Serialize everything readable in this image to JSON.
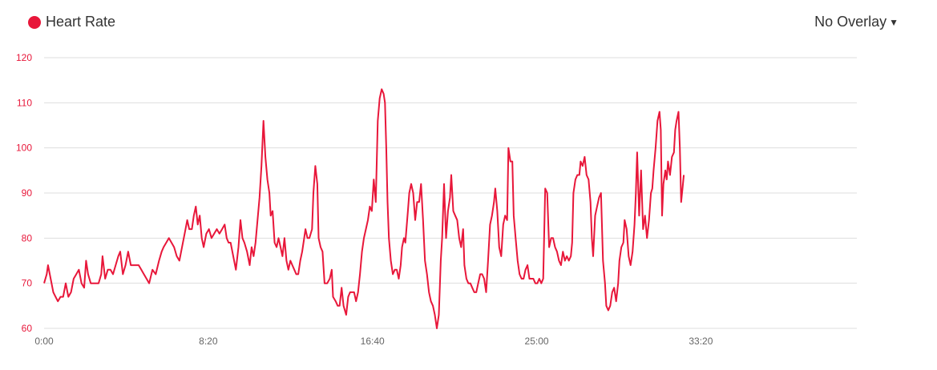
{
  "legend": {
    "label": "Heart Rate",
    "color": "#e8173a",
    "icon": "circle-icon"
  },
  "overlay": {
    "label": "No Overlay",
    "icon": "caret-down-icon"
  },
  "chart_data": {
    "type": "line",
    "title": "",
    "xlabel": "",
    "ylabel": "",
    "ylim": [
      60,
      120
    ],
    "yticks": [
      60,
      70,
      80,
      90,
      100,
      110,
      120
    ],
    "xlim_seconds": [
      0,
      2475
    ],
    "xticks": [
      {
        "label": "0:00",
        "value": 0
      },
      {
        "label": "8:20",
        "value": 500
      },
      {
        "label": "16:40",
        "value": 1000
      },
      {
        "label": "25:00",
        "value": 1500
      },
      {
        "label": "33:20",
        "value": 2000
      }
    ],
    "grid": true,
    "series": [
      {
        "name": "Heart Rate",
        "color": "#e8173a",
        "points": [
          [
            0,
            70
          ],
          [
            8,
            72
          ],
          [
            12,
            74
          ],
          [
            20,
            71
          ],
          [
            28,
            68
          ],
          [
            35,
            67
          ],
          [
            42,
            66
          ],
          [
            50,
            67
          ],
          [
            58,
            67
          ],
          [
            66,
            70
          ],
          [
            74,
            67
          ],
          [
            82,
            68
          ],
          [
            90,
            71
          ],
          [
            98,
            72
          ],
          [
            106,
            73
          ],
          [
            114,
            70
          ],
          [
            122,
            69
          ],
          [
            128,
            75
          ],
          [
            134,
            72
          ],
          [
            142,
            70
          ],
          [
            150,
            70
          ],
          [
            158,
            70
          ],
          [
            166,
            70
          ],
          [
            174,
            72
          ],
          [
            178,
            76
          ],
          [
            186,
            71
          ],
          [
            194,
            73
          ],
          [
            202,
            73
          ],
          [
            210,
            72
          ],
          [
            218,
            74
          ],
          [
            226,
            76
          ],
          [
            232,
            77
          ],
          [
            240,
            72
          ],
          [
            248,
            74
          ],
          [
            256,
            77
          ],
          [
            264,
            74
          ],
          [
            272,
            74
          ],
          [
            280,
            74
          ],
          [
            288,
            74
          ],
          [
            296,
            73
          ],
          [
            304,
            72
          ],
          [
            312,
            71
          ],
          [
            320,
            70
          ],
          [
            330,
            73
          ],
          [
            340,
            72
          ],
          [
            350,
            75
          ],
          [
            358,
            77
          ],
          [
            364,
            78
          ],
          [
            372,
            79
          ],
          [
            380,
            80
          ],
          [
            388,
            79
          ],
          [
            396,
            78
          ],
          [
            404,
            76
          ],
          [
            412,
            75
          ],
          [
            420,
            78
          ],
          [
            428,
            81
          ],
          [
            436,
            84
          ],
          [
            442,
            82
          ],
          [
            450,
            82
          ],
          [
            456,
            85
          ],
          [
            462,
            87
          ],
          [
            468,
            83
          ],
          [
            474,
            85
          ],
          [
            480,
            80
          ],
          [
            486,
            78
          ],
          [
            494,
            81
          ],
          [
            502,
            82
          ],
          [
            510,
            80
          ],
          [
            518,
            81
          ],
          [
            526,
            82
          ],
          [
            534,
            81
          ],
          [
            542,
            82
          ],
          [
            550,
            83
          ],
          [
            556,
            80
          ],
          [
            562,
            79
          ],
          [
            568,
            79
          ],
          [
            576,
            76
          ],
          [
            584,
            73
          ],
          [
            592,
            78
          ],
          [
            598,
            84
          ],
          [
            604,
            80
          ],
          [
            610,
            79
          ],
          [
            618,
            77
          ],
          [
            626,
            74
          ],
          [
            632,
            78
          ],
          [
            638,
            76
          ],
          [
            644,
            79
          ],
          [
            650,
            84
          ],
          [
            656,
            89
          ],
          [
            662,
            96
          ],
          [
            668,
            106
          ],
          [
            674,
            98
          ],
          [
            680,
            93
          ],
          [
            686,
            90
          ],
          [
            690,
            85
          ],
          [
            696,
            86
          ],
          [
            702,
            79
          ],
          [
            708,
            78
          ],
          [
            714,
            80
          ],
          [
            720,
            78
          ],
          [
            726,
            76
          ],
          [
            732,
            80
          ],
          [
            738,
            75
          ],
          [
            744,
            73
          ],
          [
            750,
            75
          ],
          [
            756,
            74
          ],
          [
            762,
            73
          ],
          [
            768,
            72
          ],
          [
            774,
            72
          ],
          [
            780,
            75
          ],
          [
            786,
            77
          ],
          [
            792,
            80
          ],
          [
            796,
            82
          ],
          [
            802,
            80
          ],
          [
            808,
            80
          ],
          [
            816,
            82
          ],
          [
            820,
            90
          ],
          [
            826,
            96
          ],
          [
            832,
            92
          ],
          [
            836,
            80
          ],
          [
            842,
            78
          ],
          [
            848,
            77
          ],
          [
            854,
            70
          ],
          [
            862,
            70
          ],
          [
            870,
            71
          ],
          [
            876,
            73
          ],
          [
            880,
            67
          ],
          [
            888,
            66
          ],
          [
            894,
            65
          ],
          [
            900,
            65
          ],
          [
            906,
            69
          ],
          [
            912,
            65
          ],
          [
            920,
            63
          ],
          [
            926,
            67
          ],
          [
            932,
            68
          ],
          [
            938,
            68
          ],
          [
            944,
            68
          ],
          [
            950,
            66
          ],
          [
            956,
            68
          ],
          [
            962,
            72
          ],
          [
            968,
            77
          ],
          [
            974,
            80
          ],
          [
            980,
            82
          ],
          [
            986,
            84
          ],
          [
            992,
            87
          ],
          [
            998,
            86
          ],
          [
            1004,
            93
          ],
          [
            1010,
            88
          ],
          [
            1016,
            106
          ],
          [
            1022,
            111
          ],
          [
            1028,
            113
          ],
          [
            1034,
            112
          ],
          [
            1038,
            110
          ],
          [
            1042,
            100
          ],
          [
            1046,
            88
          ],
          [
            1050,
            80
          ],
          [
            1056,
            75
          ],
          [
            1062,
            72
          ],
          [
            1068,
            73
          ],
          [
            1074,
            73
          ],
          [
            1080,
            71
          ],
          [
            1086,
            74
          ],
          [
            1090,
            78
          ],
          [
            1096,
            80
          ],
          [
            1100,
            79
          ],
          [
            1108,
            86
          ],
          [
            1112,
            90
          ],
          [
            1118,
            92
          ],
          [
            1124,
            90
          ],
          [
            1130,
            84
          ],
          [
            1136,
            88
          ],
          [
            1142,
            88
          ],
          [
            1148,
            92
          ],
          [
            1154,
            84
          ],
          [
            1160,
            75
          ],
          [
            1166,
            72
          ],
          [
            1172,
            68
          ],
          [
            1178,
            66
          ],
          [
            1184,
            65
          ],
          [
            1190,
            63
          ],
          [
            1196,
            60
          ],
          [
            1202,
            63
          ],
          [
            1208,
            75
          ],
          [
            1212,
            80
          ],
          [
            1218,
            92
          ],
          [
            1224,
            80
          ],
          [
            1230,
            86
          ],
          [
            1236,
            89
          ],
          [
            1240,
            94
          ],
          [
            1246,
            86
          ],
          [
            1252,
            85
          ],
          [
            1258,
            84
          ],
          [
            1264,
            80
          ],
          [
            1270,
            78
          ],
          [
            1276,
            82
          ],
          [
            1280,
            74
          ],
          [
            1286,
            71
          ],
          [
            1292,
            70
          ],
          [
            1298,
            70
          ],
          [
            1304,
            69
          ],
          [
            1310,
            68
          ],
          [
            1316,
            68
          ],
          [
            1322,
            70
          ],
          [
            1328,
            72
          ],
          [
            1334,
            72
          ],
          [
            1340,
            71
          ],
          [
            1346,
            68
          ],
          [
            1352,
            75
          ],
          [
            1358,
            83
          ],
          [
            1364,
            85
          ],
          [
            1370,
            88
          ],
          [
            1374,
            91
          ],
          [
            1380,
            86
          ],
          [
            1386,
            78
          ],
          [
            1392,
            76
          ],
          [
            1398,
            83
          ],
          [
            1404,
            85
          ],
          [
            1410,
            84
          ],
          [
            1414,
            100
          ],
          [
            1420,
            97
          ],
          [
            1426,
            97
          ],
          [
            1430,
            85
          ],
          [
            1436,
            80
          ],
          [
            1442,
            75
          ],
          [
            1448,
            72
          ],
          [
            1454,
            71
          ],
          [
            1460,
            71
          ],
          [
            1466,
            73
          ],
          [
            1472,
            74
          ],
          [
            1478,
            71
          ],
          [
            1484,
            71
          ],
          [
            1490,
            71
          ],
          [
            1496,
            70
          ],
          [
            1502,
            70
          ],
          [
            1508,
            71
          ],
          [
            1514,
            70
          ],
          [
            1520,
            71
          ],
          [
            1526,
            91
          ],
          [
            1532,
            90
          ],
          [
            1538,
            78
          ],
          [
            1544,
            80
          ],
          [
            1550,
            80
          ],
          [
            1556,
            78
          ],
          [
            1562,
            77
          ],
          [
            1568,
            75
          ],
          [
            1574,
            74
          ],
          [
            1580,
            77
          ],
          [
            1586,
            75
          ],
          [
            1592,
            76
          ],
          [
            1598,
            75
          ],
          [
            1604,
            76
          ],
          [
            1608,
            79
          ],
          [
            1612,
            90
          ],
          [
            1618,
            93
          ],
          [
            1624,
            94
          ],
          [
            1630,
            94
          ],
          [
            1634,
            97
          ],
          [
            1640,
            96
          ],
          [
            1646,
            98
          ],
          [
            1652,
            94
          ],
          [
            1658,
            93
          ],
          [
            1664,
            88
          ],
          [
            1668,
            80
          ],
          [
            1672,
            76
          ],
          [
            1678,
            85
          ],
          [
            1684,
            87
          ],
          [
            1690,
            89
          ],
          [
            1696,
            90
          ],
          [
            1702,
            75
          ],
          [
            1708,
            70
          ],
          [
            1712,
            65
          ],
          [
            1718,
            64
          ],
          [
            1724,
            65
          ],
          [
            1730,
            68
          ],
          [
            1736,
            69
          ],
          [
            1742,
            66
          ],
          [
            1748,
            70
          ],
          [
            1752,
            75
          ],
          [
            1758,
            78
          ],
          [
            1764,
            79
          ],
          [
            1768,
            84
          ],
          [
            1774,
            82
          ],
          [
            1780,
            76
          ],
          [
            1786,
            74
          ],
          [
            1792,
            77
          ],
          [
            1798,
            83
          ],
          [
            1802,
            90
          ],
          [
            1806,
            99
          ],
          [
            1812,
            85
          ],
          [
            1818,
            95
          ],
          [
            1824,
            82
          ],
          [
            1830,
            85
          ],
          [
            1836,
            80
          ],
          [
            1842,
            84
          ],
          [
            1848,
            90
          ],
          [
            1852,
            91
          ],
          [
            1856,
            95
          ],
          [
            1862,
            100
          ],
          [
            1868,
            106
          ],
          [
            1874,
            108
          ],
          [
            1878,
            104
          ],
          [
            1882,
            85
          ],
          [
            1886,
            92
          ],
          [
            1892,
            95
          ],
          [
            1896,
            93
          ],
          [
            1900,
            97
          ],
          [
            1906,
            94
          ],
          [
            1912,
            98
          ],
          [
            1918,
            99
          ],
          [
            1922,
            104
          ],
          [
            1926,
            106
          ],
          [
            1932,
            108
          ],
          [
            1936,
            100
          ],
          [
            1940,
            88
          ],
          [
            1944,
            91
          ],
          [
            1948,
            94
          ]
        ]
      }
    ]
  }
}
